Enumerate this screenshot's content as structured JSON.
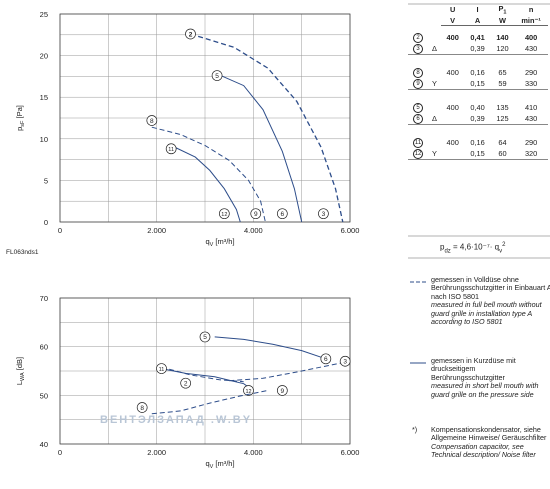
{
  "footnote_code": "FL063nds1",
  "chart_data": [
    {
      "type": "line",
      "xlabel": "q",
      "xlabel_sub": "V",
      "xlabel_unit": "[m³/h]",
      "ylabel": "p",
      "ylabel_sub": "sF",
      "ylabel_unit": "[Pa]",
      "xlim": [
        0,
        6000
      ],
      "ylim": [
        0,
        25
      ],
      "xticks": [
        {
          "v": 0,
          "label": "0"
        },
        {
          "v": 2000,
          "label": "2.000"
        },
        {
          "v": 4000,
          "label": "4.000"
        },
        {
          "v": 6000,
          "label": "6.000"
        }
      ],
      "yticks": [
        0,
        5,
        10,
        15,
        20,
        25
      ],
      "grid": true,
      "series": [
        {
          "name": "2",
          "style": "dashed",
          "bold": true,
          "points": [
            [
              2700,
              22.6
            ],
            [
              3600,
              21
            ],
            [
              4300,
              18.5
            ],
            [
              4900,
              14.5
            ],
            [
              5400,
              9
            ],
            [
              5700,
              4
            ],
            [
              5850,
              0
            ]
          ],
          "label_at": [
            2700,
            22.6
          ]
        },
        {
          "name": "3",
          "style": "dashed",
          "points": [
            [
              5850,
              0
            ]
          ],
          "label_at": [
            5450,
            1
          ]
        },
        {
          "name": "5",
          "style": "solid",
          "points": [
            [
              3250,
              17.8
            ],
            [
              3800,
              16.4
            ],
            [
              4200,
              13.5
            ],
            [
              4600,
              8.5
            ],
            [
              4850,
              4
            ],
            [
              5000,
              0
            ]
          ],
          "label_at": [
            3250,
            17.6
          ]
        },
        {
          "name": "6",
          "style": "solid",
          "points": [
            [
              5000,
              0
            ]
          ],
          "label_at": [
            4600,
            1
          ]
        },
        {
          "name": "8",
          "style": "dashed",
          "points": [
            [
              1900,
              11.4
            ],
            [
              2500,
              10.5
            ],
            [
              3000,
              9.2
            ],
            [
              3500,
              7.4
            ],
            [
              3900,
              5
            ],
            [
              4150,
              2.5
            ],
            [
              4250,
              0
            ]
          ],
          "label_at": [
            1900,
            12.2
          ]
        },
        {
          "name": "9",
          "style": "dashed",
          "points": [
            [
              4250,
              0
            ]
          ],
          "label_at": [
            4050,
            1
          ]
        },
        {
          "name": "11",
          "style": "solid",
          "points": [
            [
              2300,
              9.2
            ],
            [
              2800,
              7.8
            ],
            [
              3100,
              6.2
            ],
            [
              3400,
              4
            ],
            [
              3650,
              1.5
            ],
            [
              3730,
              0
            ]
          ],
          "label_at": [
            2300,
            8.8
          ]
        },
        {
          "name": "12",
          "style": "solid",
          "points": [
            [
              3730,
              0
            ]
          ],
          "label_at": [
            3400,
            1
          ]
        }
      ]
    },
    {
      "type": "line",
      "xlabel": "q",
      "xlabel_sub": "V",
      "xlabel_unit": "[m³/h]",
      "ylabel": "L",
      "ylabel_sub": "WA",
      "ylabel_unit": "[dB]",
      "xlim": [
        0,
        6000
      ],
      "ylim": [
        40,
        70
      ],
      "xticks": [
        {
          "v": 0,
          "label": "0"
        },
        {
          "v": 2000,
          "label": "2.000"
        },
        {
          "v": 4000,
          "label": "4.000"
        },
        {
          "v": 6000,
          "label": "6.000"
        }
      ],
      "yticks": [
        40,
        50,
        60,
        70
      ],
      "grid": true,
      "series": [
        {
          "name": "5",
          "style": "solid",
          "points": [
            [
              3200,
              62
            ],
            [
              3800,
              61.5
            ],
            [
              4400,
              60.5
            ],
            [
              5000,
              59.2
            ],
            [
              5500,
              57.5
            ]
          ],
          "label_at": [
            3000,
            62
          ]
        },
        {
          "name": "6",
          "style": "solid",
          "points": [
            [
              5500,
              57.5
            ]
          ],
          "label_at": [
            5500,
            57.5
          ]
        },
        {
          "name": "3",
          "style": "dashed",
          "points": [
            [
              3500,
              53
            ],
            [
              4200,
              53.5
            ],
            [
              4900,
              54.8
            ],
            [
              5500,
              56
            ],
            [
              5900,
              56.8
            ]
          ],
          "label_at": [
            5900,
            57
          ]
        },
        {
          "name": "2",
          "style": "dashed",
          "points": [
            [
              2100,
              55.8
            ],
            [
              2700,
              54.2
            ],
            [
              3300,
              53.2
            ],
            [
              3800,
              52.8
            ]
          ],
          "label_at": [
            2600,
            52.5
          ]
        },
        {
          "name": "11",
          "style": "solid",
          "points": [
            [
              2100,
              55.5
            ],
            [
              2600,
              54.5
            ],
            [
              3200,
              53.8
            ],
            [
              3800,
              52.4
            ],
            [
              4000,
              51
            ]
          ],
          "label_at": [
            2100,
            55.5
          ]
        },
        {
          "name": "12",
          "style": "solid",
          "points": [
            [
              4000,
              51
            ]
          ],
          "label_at": [
            3900,
            51
          ]
        },
        {
          "name": "8",
          "style": "dashed",
          "points": [
            [
              1900,
              46.2
            ],
            [
              2500,
              46.8
            ],
            [
              3100,
              48.4
            ],
            [
              3700,
              49.8
            ],
            [
              4300,
              51
            ]
          ],
          "label_at": [
            1700,
            47.5
          ]
        },
        {
          "name": "9",
          "style": "dashed",
          "points": [
            [
              4300,
              51
            ]
          ],
          "label_at": [
            4600,
            51
          ]
        }
      ]
    }
  ],
  "table": {
    "header": [
      "U",
      "I",
      "P",
      "n"
    ],
    "header_sub": [
      "",
      "",
      "1",
      ""
    ],
    "units": [
      "V",
      "A",
      "W",
      "min⁻¹"
    ],
    "groups": [
      [
        {
          "id": "2",
          "conn": "",
          "U": "400",
          "I": "0,41",
          "P": "140",
          "n": "400",
          "bold": true
        },
        {
          "id": "3",
          "conn": "Δ",
          "U": "",
          "I": "0,39",
          "P": "120",
          "n": "430"
        }
      ],
      [
        {
          "id": "8",
          "conn": "",
          "U": "400",
          "I": "0,16",
          "P": "65",
          "n": "290"
        },
        {
          "id": "9",
          "conn": "Y",
          "U": "",
          "I": "0,15",
          "P": "59",
          "n": "330"
        }
      ],
      [
        {
          "id": "5",
          "conn": "",
          "U": "400",
          "I": "0,40",
          "P": "135",
          "n": "410"
        },
        {
          "id": "6",
          "conn": "Δ",
          "U": "",
          "I": "0,39",
          "P": "125",
          "n": "430"
        }
      ],
      [
        {
          "id": "11",
          "conn": "",
          "U": "400",
          "I": "0,16",
          "P": "64",
          "n": "290"
        },
        {
          "id": "12",
          "conn": "Y",
          "U": "",
          "I": "0,15",
          "P": "60",
          "n": "320"
        }
      ]
    ]
  },
  "formula": {
    "lhs": "p",
    "lhs_sub": "dz",
    "rhs": "= 4,6·10⁻⁷· q",
    "rhs_sub": "v",
    "rhs_sup": "2"
  },
  "legend_dashed": {
    "de": "gemessen in Volldüse ohne Berührungsschutzgitter in Einbauart A nach ISO 5801",
    "en": "measured in full bell mouth without guard grille in installation type A according to ISO 5801"
  },
  "legend_solid": {
    "de": "gemessen in Kurzdüse mit druckseitigem Berührungsschutzgitter",
    "en": "measured in short bell mouth with guard grille on the pressure side"
  },
  "footnote": {
    "mark": "*)",
    "de": "Kompensationskondensator, siehe Allgemeine Hinweise/ Geräuschfilter",
    "en": "Compensation capacitor, see Technical description/ Noise filter"
  },
  "watermark": "ВЕНТЭЛЗАПАД    .W.BY"
}
